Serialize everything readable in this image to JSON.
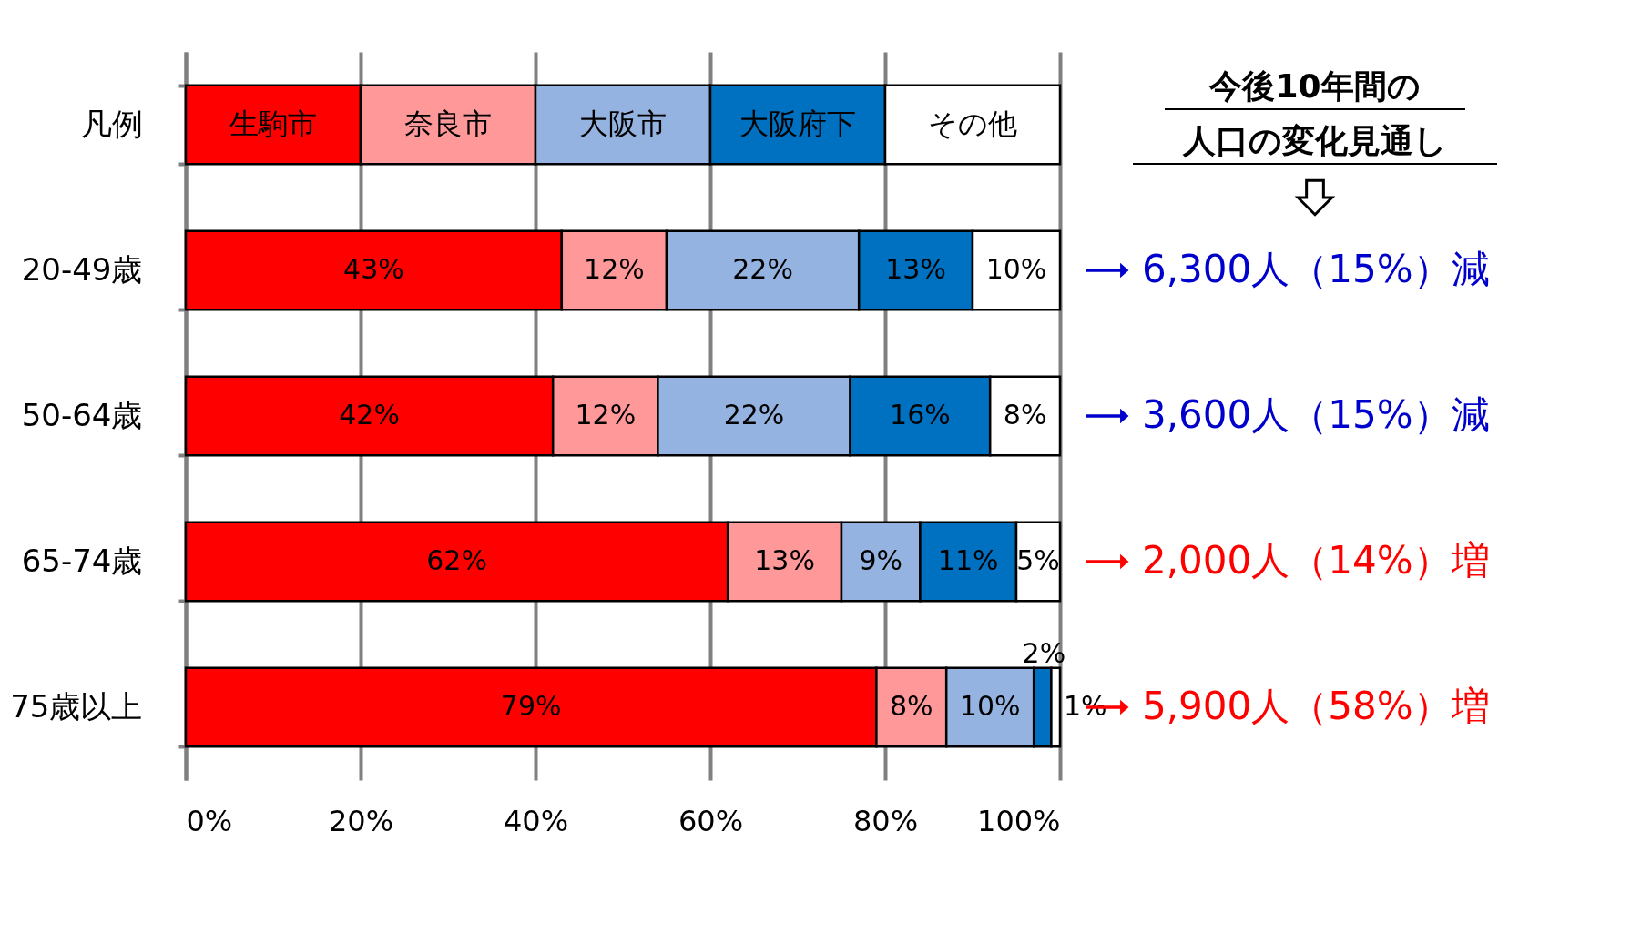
{
  "chart_data": {
    "type": "bar",
    "orientation": "horizontal",
    "stacked": true,
    "legend_title": "凡例",
    "legend": "top",
    "categories": [
      "20-49歳",
      "50-64歳",
      "65-74歳",
      "75歳以上"
    ],
    "series": [
      {
        "name": "生駒市",
        "color": "#ff0000",
        "values": [
          43,
          42,
          62,
          79
        ],
        "value_labels": [
          "43%",
          "42%",
          "62%",
          "79%"
        ]
      },
      {
        "name": "奈良市",
        "color": "#ff9999",
        "values": [
          12,
          12,
          13,
          8
        ],
        "value_labels": [
          "12%",
          "12%",
          "13%",
          "8%"
        ]
      },
      {
        "name": "大阪市",
        "color": "#95b3e0",
        "values": [
          22,
          22,
          9,
          10
        ],
        "value_labels": [
          "22%",
          "22%",
          "9%",
          "10%"
        ]
      },
      {
        "name": "大阪府下",
        "color": "#0070c0",
        "values": [
          13,
          16,
          11,
          2
        ],
        "value_labels": [
          "13%",
          "16%",
          "11%",
          "2%"
        ]
      },
      {
        "name": "その他",
        "color": "#ffffff",
        "values": [
          10,
          8,
          5,
          1
        ],
        "value_labels": [
          "10%",
          "8%",
          "5%",
          "1%"
        ]
      }
    ],
    "xlim": [
      0,
      100
    ],
    "xticks": [
      {
        "value": 0,
        "label": "0%"
      },
      {
        "value": 20,
        "label": "20%"
      },
      {
        "value": 40,
        "label": "40%"
      },
      {
        "value": 60,
        "label": "60%"
      },
      {
        "value": 80,
        "label": "80%"
      },
      {
        "value": 100,
        "label": "100%"
      }
    ],
    "grid": "x",
    "annotations": [
      "今後10年間の",
      "人口の変化見通し",
      "6,300人（15%）減",
      "3,600人（15%）減",
      "2,000人（14%）増",
      "5,900人（58%）増"
    ]
  }
}
